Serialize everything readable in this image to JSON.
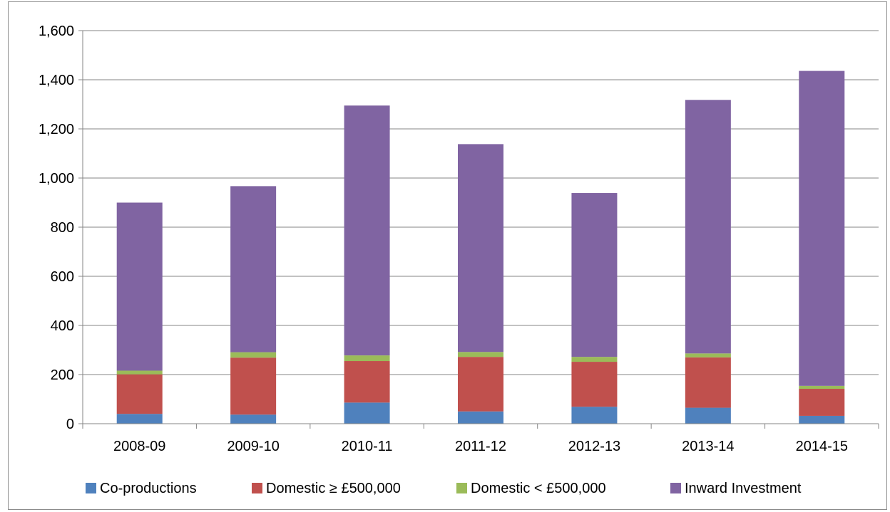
{
  "chart_data": {
    "type": "bar",
    "stacked": true,
    "title": "",
    "xlabel": "",
    "ylabel": "",
    "categories": [
      "2008-09",
      "2009-10",
      "2010-11",
      "2011-12",
      "2012-13",
      "2013-14",
      "2014-15"
    ],
    "ylim": [
      0,
      1600
    ],
    "yticks": [
      0,
      200,
      400,
      600,
      800,
      1000,
      1200,
      1400,
      1600
    ],
    "ytick_labels": [
      "0",
      "200",
      "400",
      "600",
      "800",
      "1,000",
      "1,200",
      "1,400",
      "1,600"
    ],
    "grid": "horizontal",
    "legend_position": "bottom",
    "series": [
      {
        "name": "Co-productions",
        "color": "#4f81bd",
        "values": [
          40,
          37,
          86,
          50,
          69,
          65,
          32
        ]
      },
      {
        "name": "Domestic ≥ £500,000",
        "color": "#c0504d",
        "values": [
          161,
          232,
          169,
          222,
          183,
          205,
          110
        ]
      },
      {
        "name": "Domestic < £500,000",
        "color": "#9bbb59",
        "values": [
          15,
          22,
          23,
          20,
          20,
          16,
          12
        ]
      },
      {
        "name": "Inward Investment",
        "color": "#8064a2",
        "values": [
          684,
          676,
          1017,
          846,
          667,
          1032,
          1282
        ]
      }
    ]
  }
}
